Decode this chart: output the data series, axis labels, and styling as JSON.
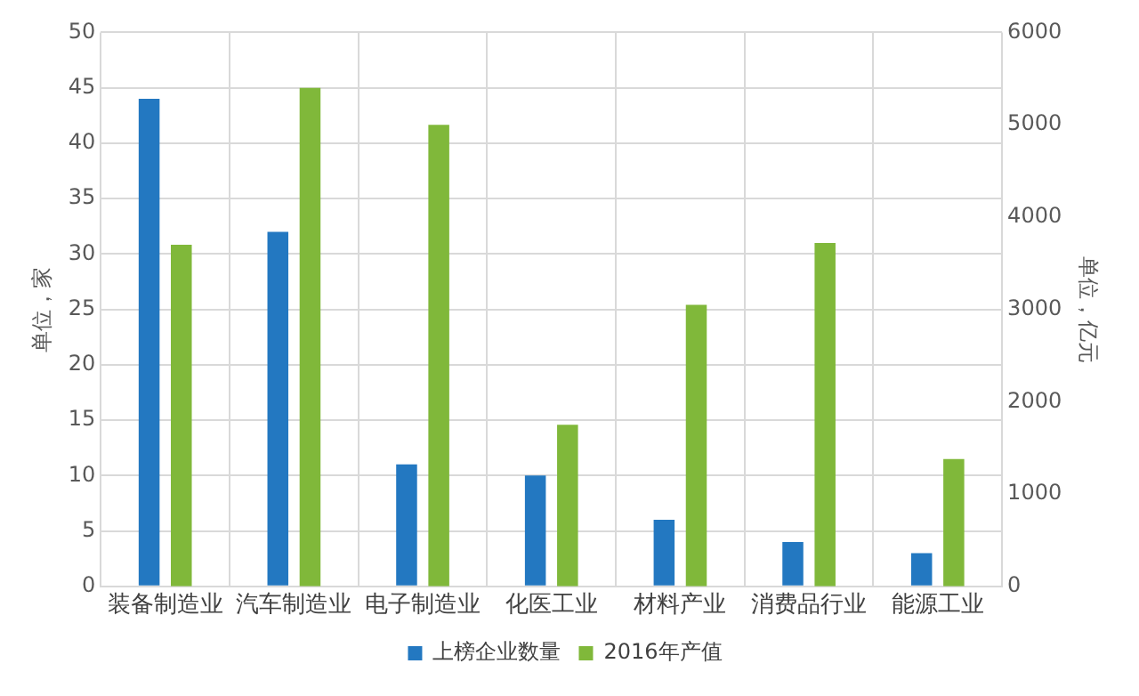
{
  "chart_data": {
    "type": "bar",
    "categories": [
      "装备制造业",
      "汽车制造业",
      "电子制造业",
      "化医工业",
      "材料产业",
      "消费品行业",
      "能源工业"
    ],
    "ylabel": "单位，家",
    "y2label": "单位，亿元",
    "series": [
      {
        "name": "上榜企业数量",
        "color": "#2378c1",
        "values": [
          44,
          32,
          11,
          10,
          6,
          4,
          3
        ]
      },
      {
        "name": "2016年产值",
        "color": "#80b83a",
        "axis": "y2",
        "values": [
          3700,
          5400,
          5000,
          1750,
          3050,
          3720,
          1380
        ]
      }
    ],
    "ylim": [
      0,
      50
    ],
    "yticks": [
      0,
      5,
      10,
      15,
      20,
      25,
      30,
      35,
      40,
      45,
      50
    ],
    "y2lim": [
      0,
      6000
    ],
    "y2ticks": [
      0,
      1000,
      2000,
      3000,
      4000,
      5000,
      6000
    ],
    "grid": true,
    "legend": "bottom"
  }
}
